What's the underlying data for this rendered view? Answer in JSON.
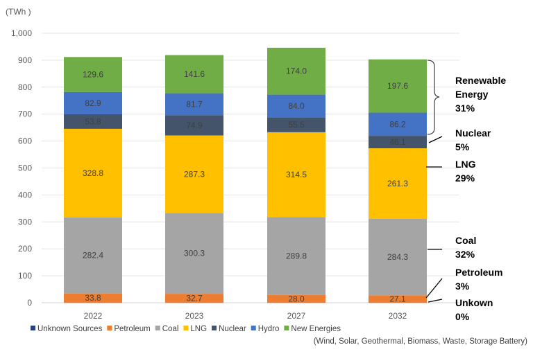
{
  "chart_data": {
    "type": "bar",
    "stacked": true,
    "unit_label": "(TWh )",
    "categories": [
      "2022",
      "2023",
      "2027",
      "2032"
    ],
    "ylim": [
      0,
      1000
    ],
    "yticks": [
      0,
      100,
      200,
      300,
      400,
      500,
      600,
      700,
      800,
      900,
      1000
    ],
    "ytick_labels": [
      "0",
      "100",
      "200",
      "300",
      "400",
      "500",
      "600",
      "700",
      "800",
      "900",
      "1,000"
    ],
    "grid": true,
    "legend_placement": "bottom",
    "legend_note": "(Wind, Solar, Geothermal, Biomass, Waste, Storage Battery)",
    "series": [
      {
        "name": "Unknown Sources",
        "color": "#264478",
        "values": [
          0.5,
          0.5,
          0.5,
          0.5
        ],
        "show_labels": false
      },
      {
        "name": "Petroleum",
        "color": "#ED7D31",
        "values": [
          33.8,
          32.7,
          28.0,
          27.1
        ],
        "labels": [
          "33.8",
          "32.7",
          "28.0",
          "27.1"
        ]
      },
      {
        "name": "Coal",
        "color": "#A5A5A5",
        "values": [
          282.4,
          300.3,
          289.8,
          284.3
        ],
        "labels": [
          "282.4",
          "300.3",
          "289.8",
          "284.3"
        ]
      },
      {
        "name": "LNG",
        "color": "#FFC000",
        "values": [
          328.8,
          287.3,
          314.5,
          261.3
        ],
        "labels": [
          "328.8",
          "287.3",
          "314.5",
          "261.3"
        ]
      },
      {
        "name": "Nuclear",
        "color": "#44546A",
        "values": [
          53.8,
          74.9,
          55.5,
          46.1
        ],
        "labels": [
          "53.8",
          "74.9",
          "55.5",
          "46.1"
        ],
        "label_color": "#ffffff"
      },
      {
        "name": "Hydro",
        "color": "#4472C4",
        "values": [
          82.9,
          81.7,
          84.0,
          86.2
        ],
        "labels": [
          "82.9",
          "81.7",
          "84.0",
          "86.2"
        ],
        "label_color": "#ffffff"
      },
      {
        "name": "New Energies",
        "color": "#70AD47",
        "values": [
          129.6,
          141.6,
          174.0,
          197.6
        ],
        "labels": [
          "129.6",
          "141.6",
          "174.0",
          "197.6"
        ]
      }
    ],
    "annotations": [
      {
        "lines": [
          "Renewable",
          "Energy",
          "31%"
        ]
      },
      {
        "lines": [
          "Nuclear",
          "5%"
        ]
      },
      {
        "lines": [
          "LNG",
          "29%"
        ]
      },
      {
        "lines": [
          "Coal",
          "32%"
        ]
      },
      {
        "lines": [
          "Petroleum",
          "3%"
        ]
      },
      {
        "lines": [
          "Unkown",
          "0%"
        ]
      }
    ]
  }
}
